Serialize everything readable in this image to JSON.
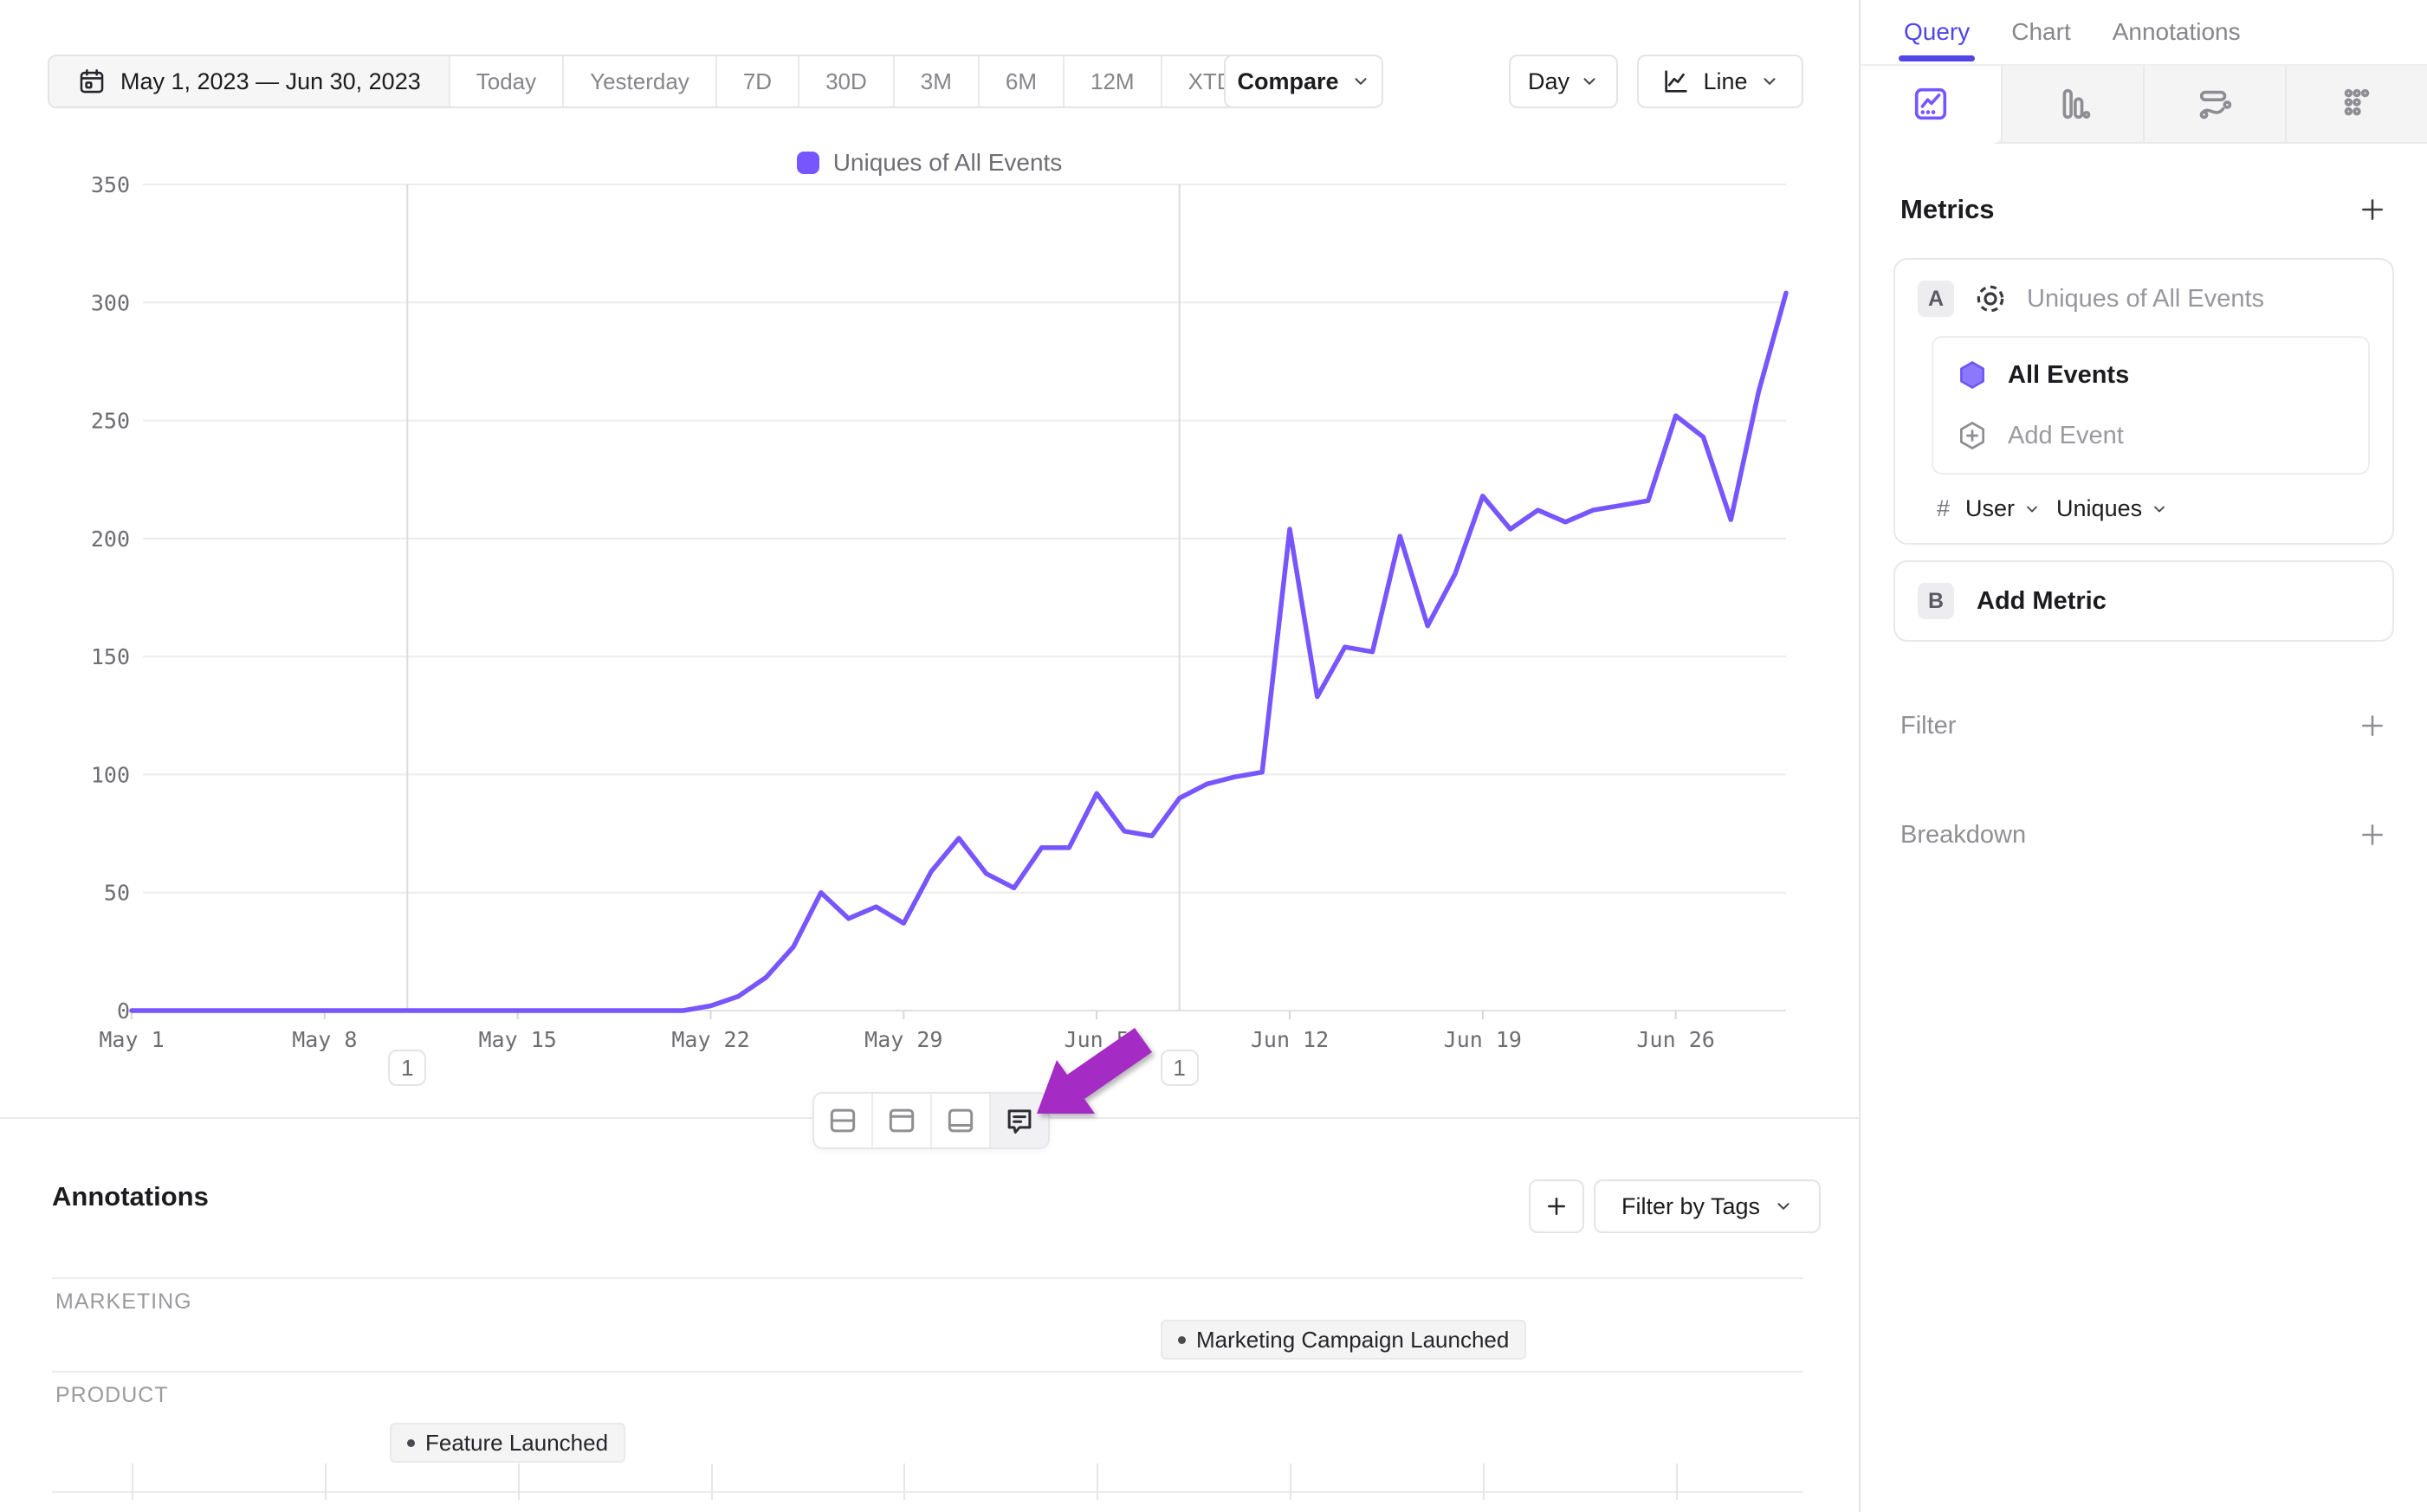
{
  "toolbar": {
    "date_range": "May 1, 2023 — Jun 30, 2023",
    "ranges": [
      "Today",
      "Yesterday",
      "7D",
      "30D",
      "3M",
      "6M",
      "12M",
      "XTD"
    ],
    "compare_label": "Compare",
    "granularity_label": "Day",
    "chart_type_label": "Line"
  },
  "legend": {
    "label": "Uniques of All Events",
    "color": "#7856ff"
  },
  "chart_data": {
    "type": "line",
    "title": "Uniques of All Events",
    "start_date": "May 1, 2023",
    "end_date": "Jun 30, 2023",
    "x_tick_labels": [
      "May 1",
      "May 8",
      "May 15",
      "May 22",
      "May 29",
      "Jun 5",
      "Jun 12",
      "Jun 19",
      "Jun 26"
    ],
    "x_tick_day_indices": [
      0,
      7,
      14,
      21,
      28,
      35,
      42,
      49,
      56
    ],
    "ylim": [
      0,
      350
    ],
    "y_ticks": [
      0,
      50,
      100,
      150,
      200,
      250,
      300,
      350
    ],
    "grid": "horizontal",
    "legend_position": "top-center",
    "series": [
      {
        "name": "Uniques of All Events",
        "color": "#7856ff",
        "values": [
          0,
          0,
          0,
          0,
          0,
          0,
          0,
          0,
          0,
          0,
          0,
          0,
          0,
          0,
          0,
          0,
          0,
          0,
          0,
          0,
          0,
          2,
          6,
          14,
          27,
          50,
          39,
          44,
          37,
          59,
          73,
          58,
          52,
          69,
          69,
          92,
          76,
          74,
          90,
          96,
          99,
          101,
          204,
          133,
          154,
          152,
          201,
          163,
          185,
          218,
          204,
          212,
          207,
          212,
          214,
          216,
          252,
          243,
          208,
          262,
          304
        ]
      }
    ],
    "annotation_markers": [
      {
        "day_index": 10,
        "count": "1"
      },
      {
        "day_index": 38,
        "count": "1"
      }
    ]
  },
  "chart_toolbar": {
    "icons": [
      "split-rows",
      "panel-top",
      "panel-bottom",
      "comment"
    ],
    "active": "comment"
  },
  "annotations_panel": {
    "title": "Annotations",
    "add_label": "+",
    "filter_button": "Filter by Tags",
    "groups": [
      {
        "label": "MARKETING",
        "items": [
          {
            "label": "Marketing Campaign Launched"
          }
        ]
      },
      {
        "label": "PRODUCT",
        "items": [
          {
            "label": "Feature Launched"
          }
        ]
      }
    ]
  },
  "sidebar": {
    "tabs": [
      "Query",
      "Chart",
      "Annotations"
    ],
    "active_tab": "Query",
    "view_icons": [
      "line-chart",
      "bar-chart",
      "flow",
      "grid-dots"
    ],
    "metrics": {
      "title": "Metrics",
      "add_label": "+",
      "metric_a": {
        "badge": "A",
        "name": "Uniques of All Events",
        "event": "All Events",
        "add_event_label": "Add Event",
        "count_symbol": "#",
        "entity": "User",
        "aggregation": "Uniques"
      },
      "metric_b": {
        "badge": "B",
        "label": "Add Metric"
      }
    },
    "filter": {
      "label": "Filter",
      "add_label": "+"
    },
    "breakdown": {
      "label": "Breakdown",
      "add_label": "+"
    }
  },
  "colors": {
    "accent_purple": "#7856ff",
    "tab_purple": "#5145e6",
    "arrow_purple": "#a42cc4",
    "grid": "#ececee",
    "text_gray": "#85858a"
  }
}
